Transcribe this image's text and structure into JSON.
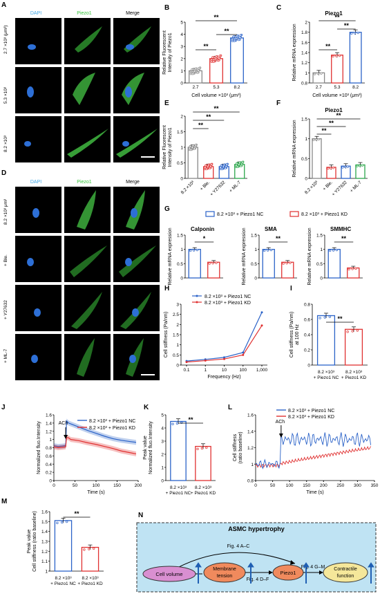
{
  "panel_letters": [
    "A",
    "B",
    "C",
    "D",
    "E",
    "F",
    "G",
    "H",
    "I",
    "J",
    "K",
    "L",
    "M",
    "N"
  ],
  "micro_a": {
    "columns": [
      "DAPI",
      "Piezo1",
      "Merge"
    ],
    "rows": [
      "2.7 ×10³ (μm³)",
      "5.3 ×10³",
      "8.2 ×10³"
    ],
    "colors": {
      "dapi": "#3fa7e6",
      "piezo": "#35c43a"
    }
  },
  "micro_d": {
    "columns": [
      "DAPI",
      "Piezo1",
      "Merge"
    ],
    "rows": [
      "8.2 ×10³ μm³",
      "+ Ble.",
      "+ Y27632",
      "+ ML-7"
    ]
  },
  "chart_data": [
    {
      "panel": "B",
      "type": "bar",
      "title": "",
      "ylabel": "Relative Fluorescent Intensity of Piezo1",
      "xlabel": "Cell volume ×10³ (μm³)",
      "categories": [
        "2.7",
        "5.3",
        "8.2"
      ],
      "values": [
        1.0,
        2.0,
        3.7
      ],
      "ylim": [
        0,
        5
      ],
      "yticks": [
        0,
        1,
        2,
        3,
        4,
        5
      ],
      "colors": [
        "#888888",
        "#e03030",
        "#2a62c8"
      ],
      "significance": [
        "**",
        "**",
        "**"
      ]
    },
    {
      "panel": "C",
      "type": "bar",
      "title": "Piezo1",
      "ylabel": "Relative mRNA expression",
      "xlabel": "Cell volume ×10³ (μm³)",
      "categories": [
        "2.7",
        "5.3",
        "8.2"
      ],
      "values": [
        1.0,
        1.35,
        1.8
      ],
      "ylim": [
        0.8,
        2.0
      ],
      "yticks": [
        0.8,
        1.0,
        1.2,
        1.4,
        1.6,
        1.8,
        2.0
      ],
      "colors": [
        "#888888",
        "#e03030",
        "#2a62c8"
      ],
      "significance": [
        "**",
        "**",
        "**"
      ]
    },
    {
      "panel": "E",
      "type": "bar",
      "title": "",
      "ylabel": "Relative Fluorescent Intensity of Piezo1",
      "categories": [
        "8.2 ×10³",
        "+ Ble.",
        "+ Y27632",
        "+ ML-7"
      ],
      "values": [
        1.0,
        0.38,
        0.38,
        0.45
      ],
      "ylim": [
        0,
        2.0
      ],
      "yticks": [
        0,
        0.5,
        1.0,
        1.5,
        2.0
      ],
      "colors": [
        "#888888",
        "#e03030",
        "#2a62c8",
        "#2aa64a"
      ],
      "significance": [
        "**",
        "**",
        "**"
      ]
    },
    {
      "panel": "F",
      "type": "bar",
      "title": "Piezo1",
      "ylabel": "Relative mRNA expression",
      "categories": [
        "8.2 ×10³",
        "+ Ble.",
        "+ Y27632",
        "+ ML-7"
      ],
      "values": [
        1.0,
        0.28,
        0.31,
        0.34
      ],
      "ylim": [
        0,
        1.5
      ],
      "yticks": [
        0,
        0.5,
        1.0,
        1.5
      ],
      "colors": [
        "#888888",
        "#e03030",
        "#2a62c8",
        "#2aa64a"
      ],
      "significance": [
        "**",
        "**",
        "**"
      ]
    },
    {
      "panel": "G",
      "legend": [
        "8.2 ×10³ + Piezo1 NC",
        "8.2 ×10³ + Piezo1 KD"
      ],
      "legend_colors": [
        "#2a62c8",
        "#e03030"
      ],
      "subplots": [
        {
          "title": "Calponin",
          "type": "bar",
          "ylabel": "Relative mRNA expression",
          "values": [
            1.0,
            0.55
          ],
          "ylim": [
            0,
            1.5
          ],
          "yticks": [
            0,
            0.5,
            1.0,
            1.5
          ],
          "significance": "*"
        },
        {
          "title": "SMA",
          "type": "bar",
          "ylabel": "Relative mRNA expression",
          "values": [
            1.0,
            0.55
          ],
          "ylim": [
            0,
            1.5
          ],
          "yticks": [
            0,
            0.5,
            1.0,
            1.5
          ],
          "significance": "**"
        },
        {
          "title": "SMMHC",
          "type": "bar",
          "ylabel": "Relative mRNA expression",
          "values": [
            1.0,
            0.35
          ],
          "ylim": [
            0,
            1.5
          ],
          "yticks": [
            0,
            0.5,
            1.0,
            1.5
          ],
          "significance": "**"
        }
      ]
    },
    {
      "panel": "H",
      "type": "line",
      "ylabel": "Cell stiffness (Pa/nm)",
      "xlabel": "Frequency (Hz)",
      "x": [
        0.1,
        1,
        10,
        100,
        1000
      ],
      "xticklabels": [
        "0.1",
        "1",
        "10",
        "100",
        "1,000"
      ],
      "ylim": [
        0,
        3.0
      ],
      "yticks": [
        0,
        0.5,
        1.0,
        1.5,
        2.0,
        2.5,
        3.0
      ],
      "series": [
        {
          "name": "8.2 ×10³ + Piezo1 NC",
          "color": "#2a62c8",
          "values": [
            0.2,
            0.28,
            0.38,
            0.62,
            2.6
          ]
        },
        {
          "name": "8.2 ×10³ + Piezo1 KD",
          "color": "#e03030",
          "values": [
            0.15,
            0.22,
            0.3,
            0.5,
            1.95
          ]
        }
      ]
    },
    {
      "panel": "I",
      "type": "bar",
      "ylabel": "Cell stiffness (Pa/nm) at 100 Hz",
      "categories": [
        "8.2 ×10³ + Piezo1 NC",
        "8.2 ×10³ + Piezo1 KD"
      ],
      "values": [
        0.65,
        0.47
      ],
      "ylim": [
        0,
        0.8
      ],
      "yticks": [
        0,
        0.2,
        0.4,
        0.6,
        0.8
      ],
      "colors": [
        "#2a62c8",
        "#e03030"
      ],
      "significance": [
        "**"
      ]
    },
    {
      "panel": "J",
      "type": "line",
      "ylabel": "Normalized fluo.Intensity",
      "xlabel": "Time (s)",
      "annotation": "ACh",
      "xlim": [
        0,
        200
      ],
      "xticks": [
        0,
        50,
        100,
        150,
        200
      ],
      "ylim": [
        0,
        1.6
      ],
      "yticks": [
        0,
        0.2,
        0.4,
        0.6,
        0.8,
        1.0,
        1.2,
        1.4,
        1.6
      ],
      "series": [
        {
          "name": "8.2 ×10³ + Piezo1 NC",
          "color": "#2a62c8",
          "x": [
            0,
            10,
            20,
            28,
            30,
            35,
            40,
            60,
            80,
            100,
            120,
            140,
            160,
            180,
            195
          ],
          "values": [
            0.85,
            0.83,
            0.84,
            0.85,
            1.45,
            1.4,
            1.38,
            1.3,
            1.22,
            1.15,
            1.08,
            1.02,
            0.98,
            0.95,
            0.93
          ]
        },
        {
          "name": "8.2 ×10³ + Piezo1 KD",
          "color": "#e03030",
          "x": [
            0,
            10,
            20,
            28,
            30,
            35,
            40,
            60,
            80,
            100,
            120,
            140,
            160,
            180,
            195
          ],
          "values": [
            0.82,
            0.8,
            0.81,
            0.82,
            1.05,
            1.04,
            1.0,
            0.97,
            0.92,
            0.88,
            0.83,
            0.78,
            0.72,
            0.68,
            0.65
          ]
        }
      ]
    },
    {
      "panel": "K",
      "type": "bar",
      "ylabel": "Peak value Normalized fluo.Intensity",
      "categories": [
        "8.2 ×10³ + Piezo1 NC",
        "8.2 ×10³ + Piezo1 KD"
      ],
      "values": [
        4.5,
        2.6
      ],
      "ylim": [
        0,
        5
      ],
      "yticks": [
        0,
        1,
        2,
        3,
        4,
        5
      ],
      "colors": [
        "#2a62c8",
        "#e03030"
      ],
      "significance": [
        "**"
      ]
    },
    {
      "panel": "L",
      "type": "line",
      "ylabel": "Cell stiffness (ratio baseline)",
      "xlabel": "Time (s)",
      "annotation": "ACh",
      "xlim": [
        0,
        350
      ],
      "xticks": [
        0,
        50,
        100,
        150,
        200,
        250,
        300,
        350
      ],
      "ylim": [
        0.8,
        1.6
      ],
      "yticks": [
        0.8,
        1.0,
        1.2,
        1.4,
        1.6
      ],
      "series": [
        {
          "name": "8.2 ×10³ + Piezo1 NC",
          "color": "#2a62c8"
        },
        {
          "name": "8.2 ×10³ + Piezo1 KD",
          "color": "#e03030"
        }
      ]
    },
    {
      "panel": "M",
      "type": "bar",
      "ylabel": "Peak value Cell stiffness (ratio baseline)",
      "categories": [
        "8.2 ×10³ + Piezo1 NC",
        "8.2 ×10³ + Piezo1 KD"
      ],
      "values": [
        1.51,
        1.24
      ],
      "ylim": [
        1.0,
        1.6
      ],
      "yticks": [
        1.0,
        1.1,
        1.2,
        1.3,
        1.4,
        1.5,
        1.6
      ],
      "colors": [
        "#2a62c8",
        "#e03030"
      ],
      "significance": [
        "**"
      ]
    }
  ],
  "diagram_n": {
    "title": "ASMC hypertrophy",
    "nodes": [
      "Cell volume",
      "Membrane tension",
      "Piezo1",
      "Contractile function"
    ],
    "edge_labels": [
      "Fig. 4 A–C",
      "Fig. 4 D–F",
      "Fig. 4 G–M"
    ],
    "colors": {
      "box_fill": "#bfe3f3",
      "cell_volume": "#d98fd1",
      "membrane": "#f08a5d",
      "piezo": "#f08a5d",
      "contractile": "#f5e79a",
      "arrow": "#1f5fb3"
    }
  }
}
